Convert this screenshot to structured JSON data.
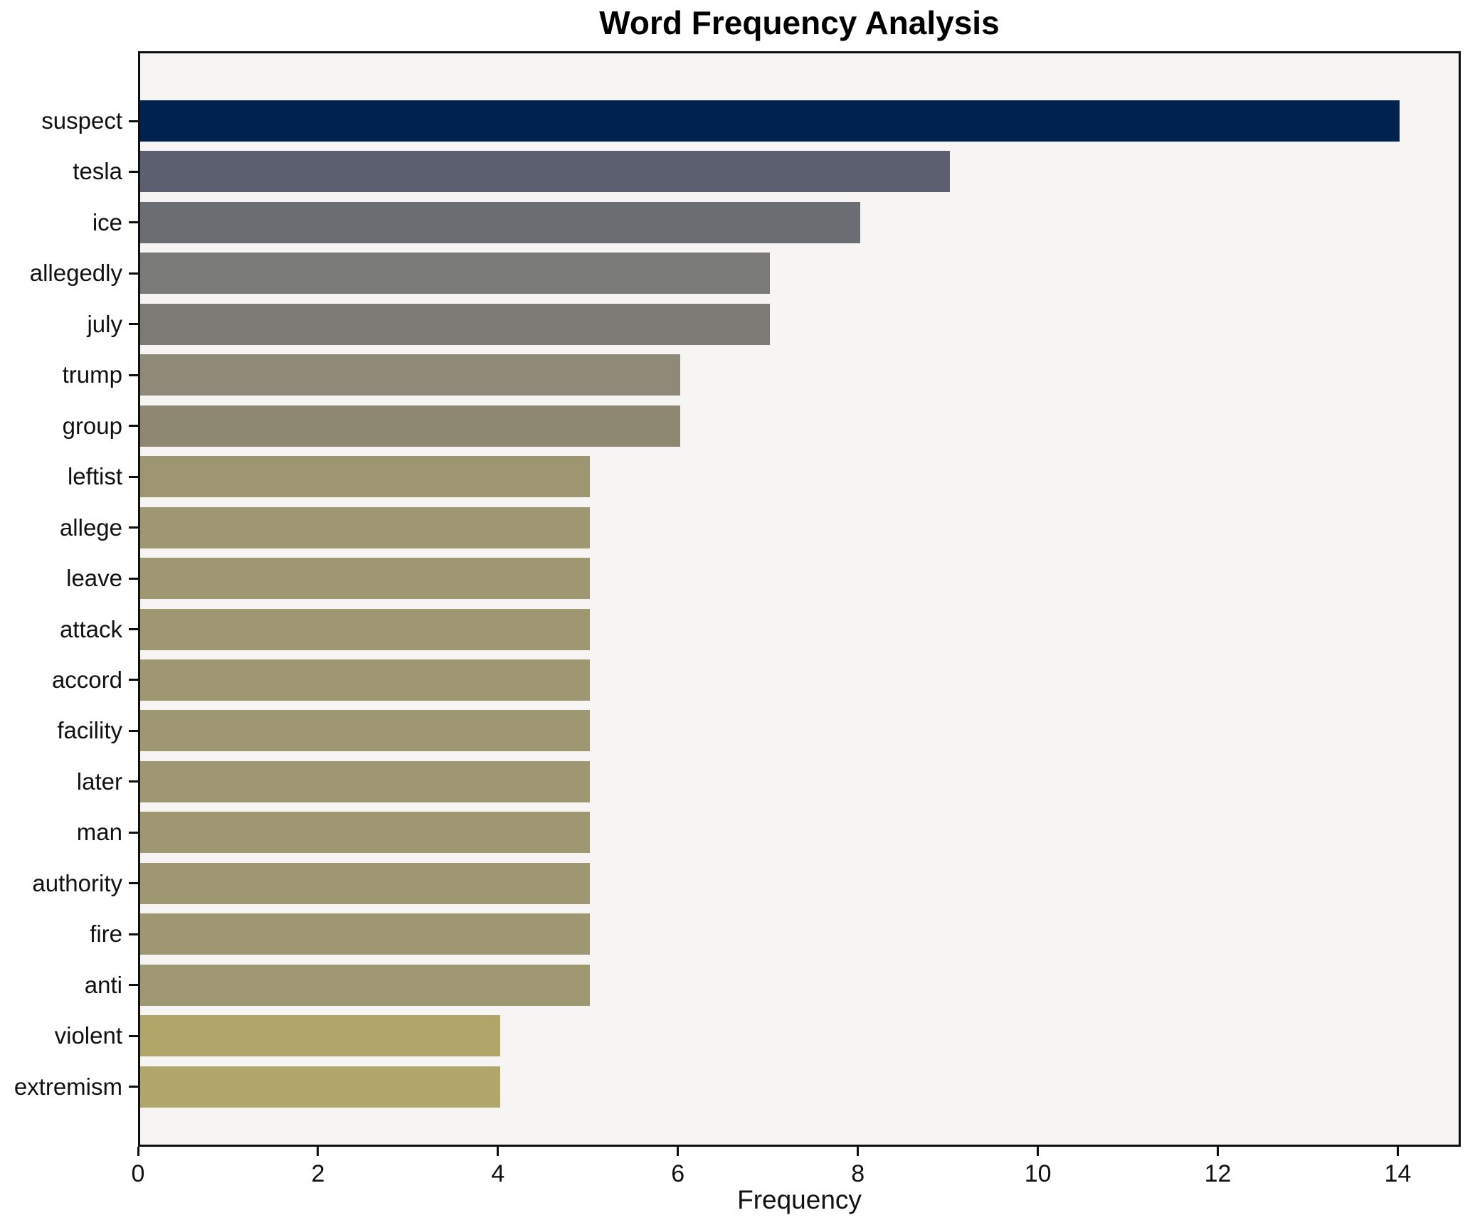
{
  "chart_data": {
    "type": "bar",
    "orientation": "horizontal",
    "title": "Word Frequency Analysis",
    "xlabel": "Frequency",
    "ylabel": "",
    "categories": [
      "suspect",
      "tesla",
      "ice",
      "allegedly",
      "july",
      "trump",
      "group",
      "leftist",
      "allege",
      "leave",
      "attack",
      "accord",
      "facility",
      "later",
      "man",
      "authority",
      "fire",
      "anti",
      "violent",
      "extremism"
    ],
    "values": [
      14,
      9,
      8,
      7,
      7,
      6,
      6,
      5,
      5,
      5,
      5,
      5,
      5,
      5,
      5,
      5,
      5,
      5,
      4,
      4
    ],
    "bar_colors": [
      "#00224e",
      "#5b5f6f",
      "#6a6d71",
      "#7a7a76",
      "#7b7a74",
      "#8f8977",
      "#8e8873",
      "#9d9671",
      "#9e9772",
      "#9e9772",
      "#9f9772",
      "#9f9772",
      "#9f9772",
      "#9f9772",
      "#9f9772",
      "#9f9772",
      "#9f9772",
      "#a09873",
      "#b0a669",
      "#b1a76a"
    ],
    "x_ticks": [
      0,
      2,
      4,
      6,
      8,
      10,
      12,
      14
    ],
    "xlim": [
      0,
      14.7
    ],
    "grid": false,
    "legend_position": "none",
    "plot_background": "#f6f5f3",
    "figure_background": "#ffffff",
    "axis_color": "#0f0f0f",
    "text_color": "#111111"
  }
}
